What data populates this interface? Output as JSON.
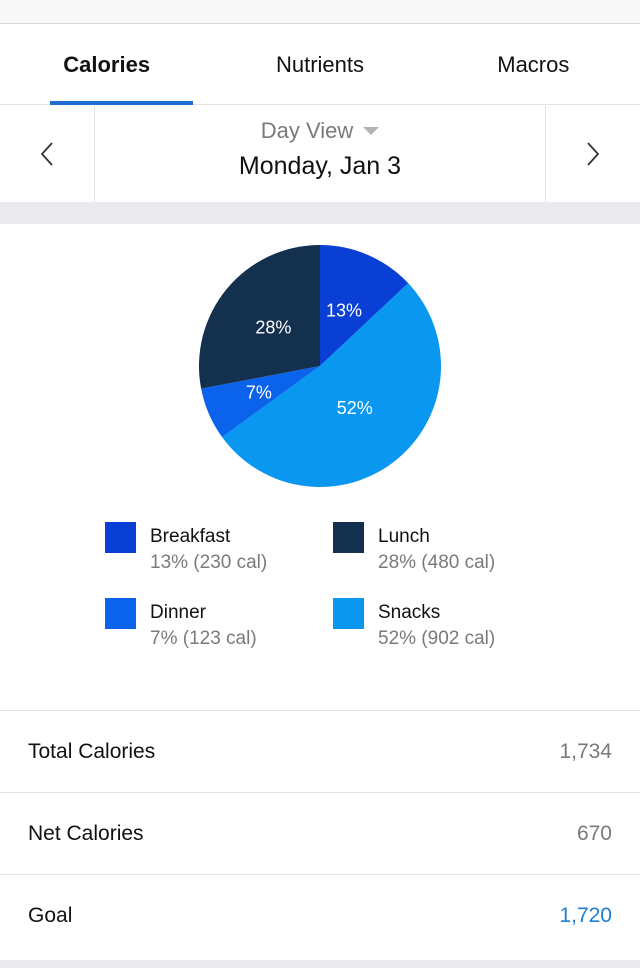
{
  "tabs": [
    {
      "label": "Calories",
      "active": true
    },
    {
      "label": "Nutrients",
      "active": false
    },
    {
      "label": "Macros",
      "active": false
    }
  ],
  "date_nav": {
    "view_label": "Day View",
    "date": "Monday, Jan 3",
    "prev_icon": "chevron-left-icon",
    "next_icon": "chevron-right-icon"
  },
  "colors": {
    "breakfast": "#0a3fd6",
    "lunch": "#14304f",
    "dinner": "#0b63ec",
    "snacks": "#0a97f0",
    "accent": "#1f6fd0",
    "goal": "#1f7fd0"
  },
  "legend": [
    {
      "name": "Breakfast",
      "value": "13% (230 cal)"
    },
    {
      "name": "Lunch",
      "value": "28% (480 cal)"
    },
    {
      "name": "Dinner",
      "value": "7% (123 cal)"
    },
    {
      "name": "Snacks",
      "value": "52% (902 cal)"
    }
  ],
  "stats": [
    {
      "label": "Total Calories",
      "value": "1,734"
    },
    {
      "label": "Net Calories",
      "value": "670"
    },
    {
      "label": "Goal",
      "value": "1,720"
    }
  ],
  "chart_data": {
    "type": "pie",
    "title": "",
    "categories": [
      "Breakfast",
      "Snacks",
      "Dinner",
      "Lunch"
    ],
    "values": [
      13,
      52,
      7,
      28
    ],
    "calories": [
      230,
      902,
      123,
      480
    ],
    "labels": [
      "13%",
      "52%",
      "7%",
      "28%"
    ],
    "colors": [
      "#0a3fd6",
      "#0a97f0",
      "#0b63ec",
      "#14304f"
    ],
    "legend_position": "bottom"
  }
}
